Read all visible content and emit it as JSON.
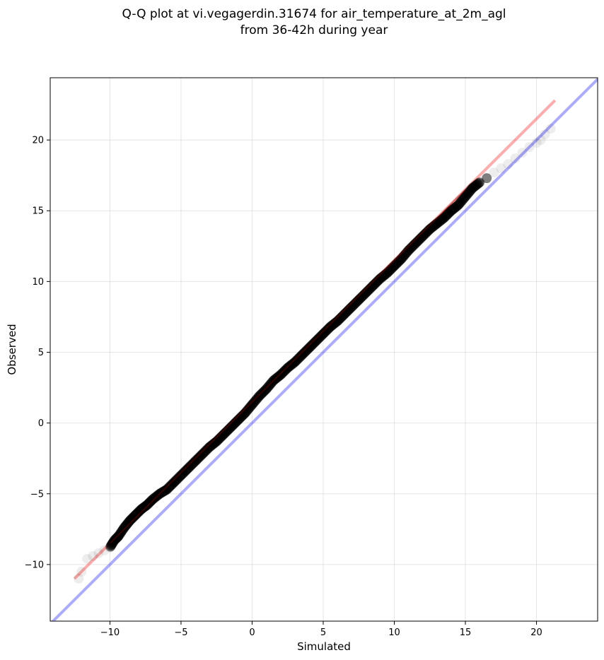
{
  "chart_data": {
    "type": "scatter",
    "title": "Q-Q plot at vi.vegagerdin.31674 for air_temperature_at_2m_agl",
    "subtitle": "from 36-42h during year",
    "xlabel": "Simulated",
    "ylabel": "Observed",
    "xlim": [
      -14.2,
      24.3
    ],
    "ylim": [
      -14.0,
      24.4
    ],
    "xticks": [
      -10,
      -5,
      0,
      5,
      10,
      15,
      20
    ],
    "yticks": [
      -10,
      -5,
      0,
      5,
      10,
      15,
      20
    ],
    "xtick_labels": [
      "−10",
      "−5",
      "0",
      "5",
      "10",
      "15",
      "20"
    ],
    "ytick_labels": [
      "−10",
      "−5",
      "0",
      "5",
      "10",
      "15",
      "20"
    ],
    "grid": true,
    "colors": {
      "points": "#000000",
      "identity_line": "#0000ff",
      "fit_line": "#ff0000",
      "grid": "#cccccc"
    },
    "identity_line": {
      "x": [
        -14.2,
        24.3
      ],
      "y": [
        -14.2,
        24.3
      ]
    },
    "fit_line": {
      "x": [
        -12.5,
        21.3
      ],
      "y": [
        -11.0,
        22.8
      ]
    },
    "quantiles": {
      "x": [
        -12.2,
        -12.0,
        -11.6,
        -11.2,
        -10.8,
        -10.4,
        -10.0,
        -9.7,
        -9.4,
        -9.0,
        -8.6,
        -8.2,
        -7.8,
        -7.4,
        -7.0,
        -6.5,
        -6.0,
        -5.5,
        -5.0,
        -4.5,
        -4.0,
        -3.5,
        -3.0,
        -2.5,
        -2.0,
        -1.5,
        -1.0,
        -0.5,
        0.0,
        0.5,
        1.0,
        1.5,
        2.0,
        2.5,
        3.0,
        3.5,
        4.0,
        4.5,
        5.0,
        5.5,
        6.0,
        6.5,
        7.0,
        7.5,
        8.0,
        8.5,
        9.0,
        9.5,
        10.0,
        10.5,
        11.0,
        11.5,
        12.0,
        12.5,
        13.0,
        13.5,
        14.0,
        14.5,
        15.0,
        15.5,
        16.0,
        16.5,
        17.0,
        17.5,
        18.0,
        18.5,
        19.0,
        19.5,
        20.0,
        20.3,
        20.6,
        21.0
      ],
      "y": [
        -11.0,
        -10.5,
        -9.6,
        -9.4,
        -9.2,
        -9.0,
        -8.8,
        -8.3,
        -8.0,
        -7.4,
        -6.9,
        -6.5,
        -6.1,
        -5.8,
        -5.4,
        -5.0,
        -4.7,
        -4.2,
        -3.7,
        -3.2,
        -2.7,
        -2.2,
        -1.7,
        -1.3,
        -0.8,
        -0.3,
        0.2,
        0.7,
        1.3,
        1.9,
        2.4,
        3.0,
        3.4,
        3.9,
        4.3,
        4.8,
        5.3,
        5.8,
        6.3,
        6.8,
        7.2,
        7.7,
        8.2,
        8.7,
        9.2,
        9.7,
        10.2,
        10.6,
        11.1,
        11.6,
        12.2,
        12.7,
        13.2,
        13.7,
        14.1,
        14.5,
        15.0,
        15.4,
        16.0,
        16.6,
        17.0,
        17.3,
        17.7,
        18.0,
        18.3,
        18.7,
        19.1,
        19.5,
        19.8,
        20.0,
        20.4,
        20.8
      ]
    }
  }
}
